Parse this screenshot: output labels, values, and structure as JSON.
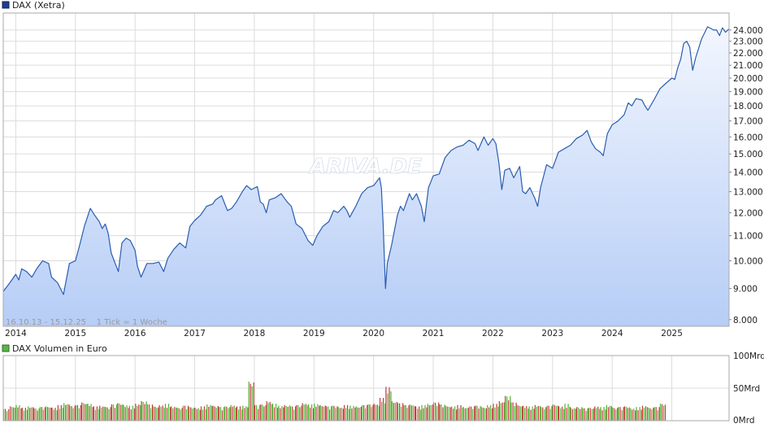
{
  "chart_data": [
    {
      "type": "area",
      "legend": "DAX (Xetra)",
      "watermark": "ARIVA.DE",
      "info_text": "16.10.13 - 15.12.25    1 Tick = 1 Woche",
      "colors": {
        "line": "#2a5db0",
        "legend_square": "#1f3f8f",
        "fill_top": "#f2f6fe",
        "fill_bottom": "#b6cdf6",
        "grid": "#dcdcdc"
      },
      "y_scale": "log",
      "ylim": [
        7800,
        25600
      ],
      "y_ticks": [
        8000,
        9000,
        10000,
        11000,
        12000,
        13000,
        14000,
        15000,
        16000,
        17000,
        18000,
        19000,
        20000,
        21000,
        22000,
        23000,
        24000
      ],
      "y_tick_labels": [
        "8.000",
        "9.000",
        "10.000",
        "11.000",
        "12.000",
        "13.000",
        "14.000",
        "15.000",
        "16.000",
        "17.000",
        "18.000",
        "19.000",
        "20.000",
        "21.000",
        "22.000",
        "23.000",
        "24.000"
      ],
      "xlim": [
        2013.79,
        2025.96
      ],
      "x_ticks": [
        2014,
        2015,
        2016,
        2017,
        2018,
        2019,
        2020,
        2021,
        2022,
        2023,
        2024,
        2025
      ],
      "x_tick_labels": [
        "2014",
        "2015",
        "2016",
        "2017",
        "2018",
        "2019",
        "2020",
        "2021",
        "2022",
        "2023",
        "2024",
        "2025"
      ],
      "series": [
        {
          "x": [
            2013.79,
            2013.9,
            2014.0,
            2014.05,
            2014.1,
            2014.18,
            2014.27,
            2014.35,
            2014.45,
            2014.55,
            2014.6,
            2014.65,
            2014.7,
            2014.8,
            2014.9,
            2015.0,
            2015.08,
            2015.15,
            2015.2,
            2015.25,
            2015.32,
            2015.4,
            2015.45,
            2015.5,
            2015.55,
            2015.6,
            2015.65,
            2015.72,
            2015.78,
            2015.85,
            2015.92,
            2016.0,
            2016.04,
            2016.1,
            2016.2,
            2016.3,
            2016.4,
            2016.48,
            2016.55,
            2016.65,
            2016.75,
            2016.85,
            2016.92,
            2017.0,
            2017.1,
            2017.2,
            2017.3,
            2017.35,
            2017.45,
            2017.55,
            2017.62,
            2017.7,
            2017.8,
            2017.87,
            2017.95,
            2018.05,
            2018.1,
            2018.15,
            2018.2,
            2018.25,
            2018.35,
            2018.45,
            2018.55,
            2018.62,
            2018.7,
            2018.8,
            2018.9,
            2018.98,
            2019.05,
            2019.15,
            2019.25,
            2019.33,
            2019.4,
            2019.5,
            2019.55,
            2019.6,
            2019.7,
            2019.8,
            2019.9,
            2020.0,
            2020.1,
            2020.13,
            2020.16,
            2020.2,
            2020.23,
            2020.3,
            2020.4,
            2020.45,
            2020.5,
            2020.6,
            2020.65,
            2020.72,
            2020.8,
            2020.85,
            2020.92,
            2021.0,
            2021.1,
            2021.2,
            2021.3,
            2021.4,
            2021.5,
            2021.6,
            2021.7,
            2021.75,
            2021.85,
            2021.92,
            2022.0,
            2022.05,
            2022.1,
            2022.15,
            2022.2,
            2022.28,
            2022.35,
            2022.45,
            2022.5,
            2022.55,
            2022.62,
            2022.7,
            2022.75,
            2022.8,
            2022.9,
            2023.0,
            2023.1,
            2023.2,
            2023.3,
            2023.4,
            2023.5,
            2023.58,
            2023.65,
            2023.72,
            2023.8,
            2023.85,
            2023.92,
            2024.0,
            2024.1,
            2024.2,
            2024.27,
            2024.33,
            2024.4,
            2024.5,
            2024.55,
            2024.6,
            2024.7,
            2024.8,
            2024.9,
            2025.0,
            2025.05,
            2025.1,
            2025.15,
            2025.2,
            2025.25,
            2025.3,
            2025.35,
            2025.4,
            2025.5,
            2025.6,
            2025.7,
            2025.75,
            2025.8,
            2025.85,
            2025.9,
            2025.96
          ],
          "values": [
            8900,
            9200,
            9500,
            9300,
            9700,
            9600,
            9400,
            9700,
            10000,
            9900,
            9400,
            9300,
            9200,
            8800,
            9900,
            10000,
            10700,
            11400,
            11800,
            12200,
            11900,
            11600,
            11300,
            11500,
            11100,
            10300,
            10000,
            9600,
            10700,
            10900,
            10800,
            10400,
            9800,
            9400,
            9900,
            9900,
            9950,
            9600,
            10100,
            10450,
            10700,
            10500,
            11400,
            11650,
            11900,
            12300,
            12400,
            12600,
            12800,
            12100,
            12200,
            12500,
            13000,
            13300,
            13100,
            13250,
            12500,
            12400,
            12000,
            12600,
            12700,
            12900,
            12500,
            12300,
            11500,
            11300,
            10800,
            10600,
            11000,
            11400,
            11600,
            12100,
            12000,
            12300,
            12100,
            11800,
            12300,
            12900,
            13200,
            13300,
            13700,
            13200,
            11500,
            9000,
            9900,
            10600,
            11900,
            12300,
            12100,
            12900,
            12600,
            12900,
            12300,
            11600,
            13200,
            13800,
            13900,
            14800,
            15200,
            15400,
            15500,
            15800,
            15600,
            15200,
            16000,
            15500,
            15900,
            15600,
            14500,
            13100,
            14100,
            14200,
            13700,
            14300,
            13000,
            12900,
            13200,
            12700,
            12300,
            13200,
            14400,
            14200,
            15100,
            15300,
            15500,
            15900,
            16100,
            16400,
            15700,
            15300,
            15100,
            14900,
            16200,
            16750,
            17000,
            17400,
            18200,
            18000,
            18500,
            18400,
            18000,
            17700,
            18400,
            19200,
            19600,
            20000,
            19900,
            20800,
            21500,
            22800,
            23000,
            22500,
            20600,
            21600,
            23200,
            24300,
            24000,
            24000,
            23500,
            24200,
            23800,
            24100
          ]
        }
      ]
    },
    {
      "type": "bar",
      "legend": "DAX Volumen in Euro",
      "colors": {
        "up": "#4eb530",
        "down": "#c23b3b",
        "legend_square": "#59b44a"
      },
      "ylim": [
        0,
        100
      ],
      "y_ticks": [
        0,
        50,
        100
      ],
      "y_tick_labels": [
        "0Mrd",
        "50Mrd",
        "100Mrd"
      ],
      "ylabel": "",
      "x": [
        2013.79,
        2013.9,
        2014.0,
        2014.1,
        2014.2,
        2014.3,
        2014.4,
        2014.5,
        2014.6,
        2014.7,
        2014.8,
        2014.9,
        2015.0,
        2015.1,
        2015.2,
        2015.3,
        2015.4,
        2015.5,
        2015.6,
        2015.7,
        2015.8,
        2015.9,
        2016.0,
        2016.1,
        2016.2,
        2016.3,
        2016.4,
        2016.5,
        2016.6,
        2016.7,
        2016.8,
        2016.9,
        2017.0,
        2017.1,
        2017.2,
        2017.3,
        2017.4,
        2017.5,
        2017.6,
        2017.7,
        2017.8,
        2017.9,
        2018.0,
        2018.1,
        2018.2,
        2018.3,
        2018.4,
        2018.5,
        2018.6,
        2018.7,
        2018.8,
        2018.9,
        2019.0,
        2019.1,
        2019.2,
        2019.3,
        2019.4,
        2019.5,
        2019.6,
        2019.7,
        2019.8,
        2019.9,
        2020.0,
        2020.1,
        2020.2,
        2020.3,
        2020.4,
        2020.5,
        2020.6,
        2020.7,
        2020.8,
        2020.9,
        2021.0,
        2021.1,
        2021.2,
        2021.3,
        2021.4,
        2021.5,
        2021.6,
        2021.7,
        2021.8,
        2021.9,
        2022.0,
        2022.1,
        2022.2,
        2022.3,
        2022.4,
        2022.5,
        2022.6,
        2022.7,
        2022.8,
        2022.9,
        2023.0,
        2023.1,
        2023.2,
        2023.3,
        2023.4,
        2023.5,
        2023.6,
        2023.7,
        2023.8,
        2023.9,
        2024.0,
        2024.1,
        2024.2,
        2024.3,
        2024.4,
        2024.5,
        2024.6,
        2024.7,
        2024.8
      ],
      "values": [
        18,
        22,
        24,
        20,
        22,
        19,
        21,
        22,
        20,
        24,
        27,
        23,
        24,
        28,
        26,
        22,
        23,
        21,
        25,
        27,
        24,
        23,
        26,
        30,
        25,
        22,
        24,
        26,
        22,
        20,
        23,
        21,
        20,
        22,
        25,
        23,
        21,
        22,
        24,
        22,
        23,
        60,
        24,
        25,
        30,
        26,
        23,
        24,
        22,
        24,
        27,
        25,
        26,
        24,
        22,
        23,
        21,
        24,
        23,
        22,
        24,
        25,
        26,
        35,
        52,
        30,
        27,
        24,
        25,
        22,
        24,
        26,
        28,
        25,
        23,
        22,
        24,
        21,
        22,
        23,
        21,
        24,
        26,
        30,
        38,
        28,
        24,
        23,
        22,
        24,
        21,
        23,
        25,
        22,
        26,
        20,
        21,
        19,
        20,
        22,
        21,
        24,
        20,
        21,
        22,
        19,
        21,
        23,
        20,
        21,
        26
      ],
      "up": [
        true,
        false,
        true,
        false,
        true,
        false,
        true,
        true,
        false,
        false,
        true,
        true,
        true,
        false,
        true,
        false,
        false,
        true,
        false,
        false,
        true,
        true,
        false,
        false,
        true,
        true,
        false,
        true,
        false,
        true,
        true,
        true,
        true,
        false,
        true,
        true,
        false,
        true,
        true,
        false,
        true,
        true,
        false,
        false,
        false,
        true,
        true,
        false,
        true,
        false,
        false,
        true,
        true,
        true,
        false,
        true,
        true,
        false,
        true,
        true,
        true,
        true,
        false,
        false,
        false,
        true,
        true,
        true,
        true,
        false,
        true,
        true,
        true,
        false,
        true,
        true,
        false,
        true,
        true,
        false,
        true,
        true,
        false,
        false,
        false,
        true,
        true,
        false,
        true,
        false,
        true,
        true,
        true,
        false,
        true,
        true,
        false,
        true,
        true,
        false,
        true,
        true,
        true,
        true,
        false,
        true,
        true,
        false,
        true,
        true,
        true
      ]
    }
  ]
}
